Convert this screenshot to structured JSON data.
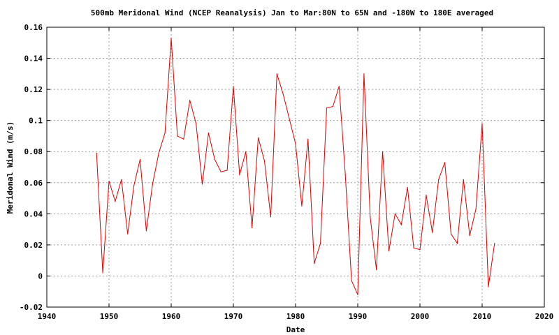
{
  "chart_data": {
    "type": "line",
    "title": "500mb Meridonal Wind (NCEP Reanalysis) Jan to Mar:80N to 65N and -180W to 180E averaged",
    "xlabel": "Date",
    "ylabel": "Meridonal Wind (m/s)",
    "xlim": [
      1940,
      2020
    ],
    "ylim": [
      -0.02,
      0.16
    ],
    "x_ticks": [
      1940,
      1950,
      1960,
      1970,
      1980,
      1990,
      2000,
      2010,
      2020
    ],
    "x_tick_labels": [
      "1940",
      "1950",
      "1960",
      "1970",
      "1980",
      "1990",
      "2000",
      "2010",
      "2020"
    ],
    "y_ticks": [
      -0.02,
      0,
      0.02,
      0.04,
      0.06,
      0.08,
      0.1,
      0.12,
      0.14,
      0.16
    ],
    "y_tick_labels": [
      "-0.02",
      "0",
      "0.02",
      "0.04",
      "0.06",
      "0.08",
      "0.1",
      "0.12",
      "0.14",
      "0.16"
    ],
    "grid": true,
    "colors": {
      "line": "#dd0000",
      "grid": "#a0a0a0",
      "axis": "#000000"
    },
    "series": [
      {
        "x": [
          1948,
          1949,
          1950,
          1951,
          1952,
          1953,
          1954,
          1955,
          1956,
          1957,
          1958,
          1959,
          1960,
          1961,
          1962,
          1963,
          1964,
          1965,
          1966,
          1967,
          1968,
          1969,
          1970,
          1971,
          1972,
          1973,
          1974,
          1975,
          1976,
          1977,
          1978,
          1979,
          1980,
          1981,
          1982,
          1983,
          1984,
          1985,
          1986,
          1987,
          1988,
          1989,
          1990,
          1991,
          1992,
          1993,
          1994,
          1995,
          1996,
          1997,
          1998,
          1999,
          2000,
          2001,
          2002,
          2003,
          2004,
          2005,
          2006,
          2007,
          2008,
          2009,
          2010,
          2011,
          2012
        ],
        "y": [
          0.079,
          0.002,
          0.061,
          0.048,
          0.062,
          0.027,
          0.058,
          0.075,
          0.029,
          0.059,
          0.079,
          0.092,
          0.153,
          0.09,
          0.088,
          0.113,
          0.098,
          0.059,
          0.092,
          0.075,
          0.067,
          0.068,
          0.122,
          0.065,
          0.08,
          0.031,
          0.089,
          0.074,
          0.038,
          0.13,
          0.117,
          0.101,
          0.085,
          0.045,
          0.088,
          0.008,
          0.021,
          0.108,
          0.109,
          0.122,
          0.065,
          -0.003,
          -0.012,
          0.13,
          0.038,
          0.004,
          0.08,
          0.016,
          0.04,
          0.033,
          0.057,
          0.018,
          0.017,
          0.052,
          0.028,
          0.062,
          0.073,
          0.027,
          0.021,
          0.062,
          0.026,
          0.043,
          0.098,
          -0.007,
          0.021
        ]
      }
    ]
  }
}
